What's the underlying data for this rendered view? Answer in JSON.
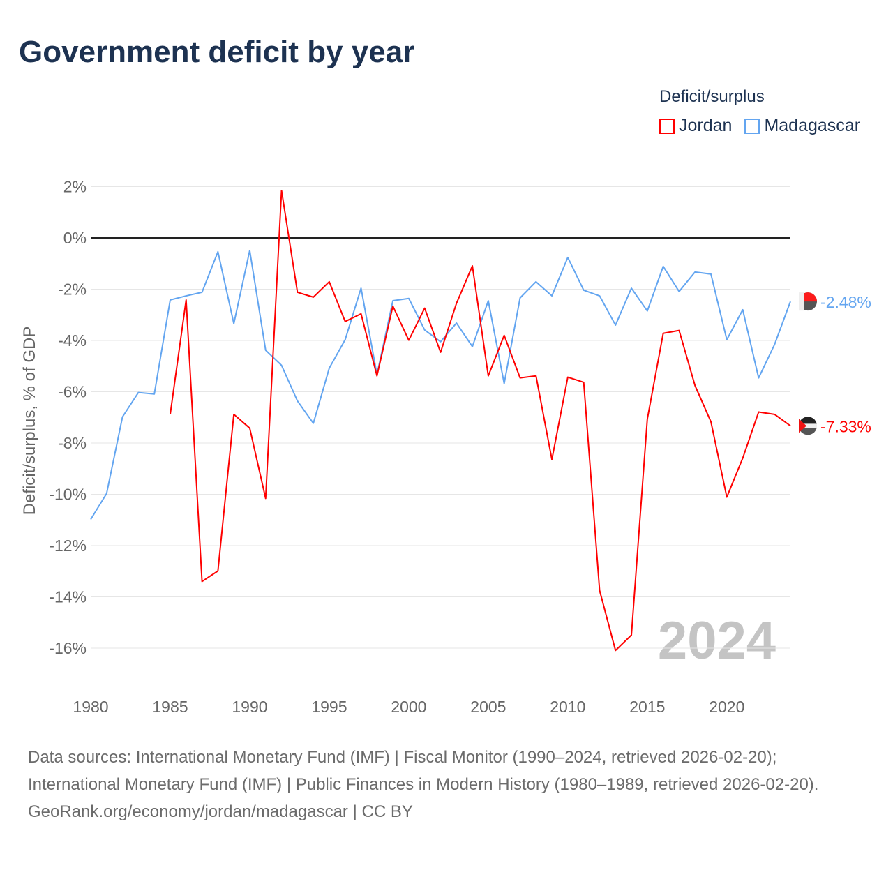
{
  "title": "Government deficit by year",
  "legend": {
    "title": "Deficit/surplus",
    "items": [
      {
        "name": "Jordan",
        "color": "#ff0000"
      },
      {
        "name": "Madagascar",
        "color": "#63a5f0"
      }
    ]
  },
  "watermark_year": "2024",
  "footer": {
    "sources": "Data sources: International Monetary Fund (IMF) | Fiscal Monitor (1990–2024, retrieved 2026-02-20); International Monetary Fund (IMF) | Public Finances in Modern History (1980–1989, retrieved 2026-02-20).",
    "credit": "GeoRank.org/economy/jordan/madagascar | CC BY"
  },
  "chart_data": {
    "type": "line",
    "title": "Government deficit by year",
    "xlabel": "",
    "ylabel": "Deficit/surplus, % of GDP",
    "xlim": [
      1980,
      2024
    ],
    "ylim": [
      -16,
      2
    ],
    "x_ticks": [
      "1980",
      "1985",
      "1990",
      "1995",
      "2000",
      "2005",
      "2010",
      "2015",
      "2020"
    ],
    "y_ticks": [
      "2%",
      "0%",
      "-2%",
      "-4%",
      "-6%",
      "-8%",
      "-10%",
      "-12%",
      "-14%",
      "-16%"
    ],
    "series": [
      {
        "name": "Madagascar",
        "color": "#63a5f0",
        "end_label": "-2.48%",
        "start_year": 1980,
        "values": [
          -10.98,
          -9.97,
          -6.98,
          -6.03,
          -6.09,
          -2.42,
          -2.26,
          -2.12,
          -0.54,
          -3.34,
          -0.49,
          -4.38,
          -4.97,
          -6.36,
          -7.23,
          -5.08,
          -3.97,
          -1.96,
          -5.33,
          -2.45,
          -2.36,
          -3.59,
          -4.05,
          -3.32,
          -4.24,
          -2.45,
          -5.68,
          -2.34,
          -1.71,
          -2.26,
          -0.76,
          -2.04,
          -2.26,
          -3.4,
          -1.96,
          -2.85,
          -1.11,
          -2.09,
          -1.33,
          -1.41,
          -3.97,
          -2.8,
          -5.46,
          -4.16,
          -2.48
        ]
      },
      {
        "name": "Jordan",
        "color": "#ff0000",
        "end_label": "-7.33%",
        "start_year": 1985,
        "values": [
          -6.88,
          -2.42,
          -13.4,
          -12.99,
          -6.88,
          -7.42,
          -10.16,
          1.85,
          -2.12,
          -2.31,
          -1.71,
          -3.26,
          -2.96,
          -5.38,
          -2.66,
          -3.99,
          -2.74,
          -4.46,
          -2.55,
          -1.09,
          -5.38,
          -3.8,
          -5.46,
          -5.38,
          -8.64,
          -5.43,
          -5.63,
          -13.75,
          -16.09,
          -15.49,
          -7.07,
          -3.72,
          -3.61,
          -5.76,
          -7.17,
          -10.11,
          -8.59,
          -6.79,
          -6.88,
          -7.33
        ]
      }
    ]
  }
}
